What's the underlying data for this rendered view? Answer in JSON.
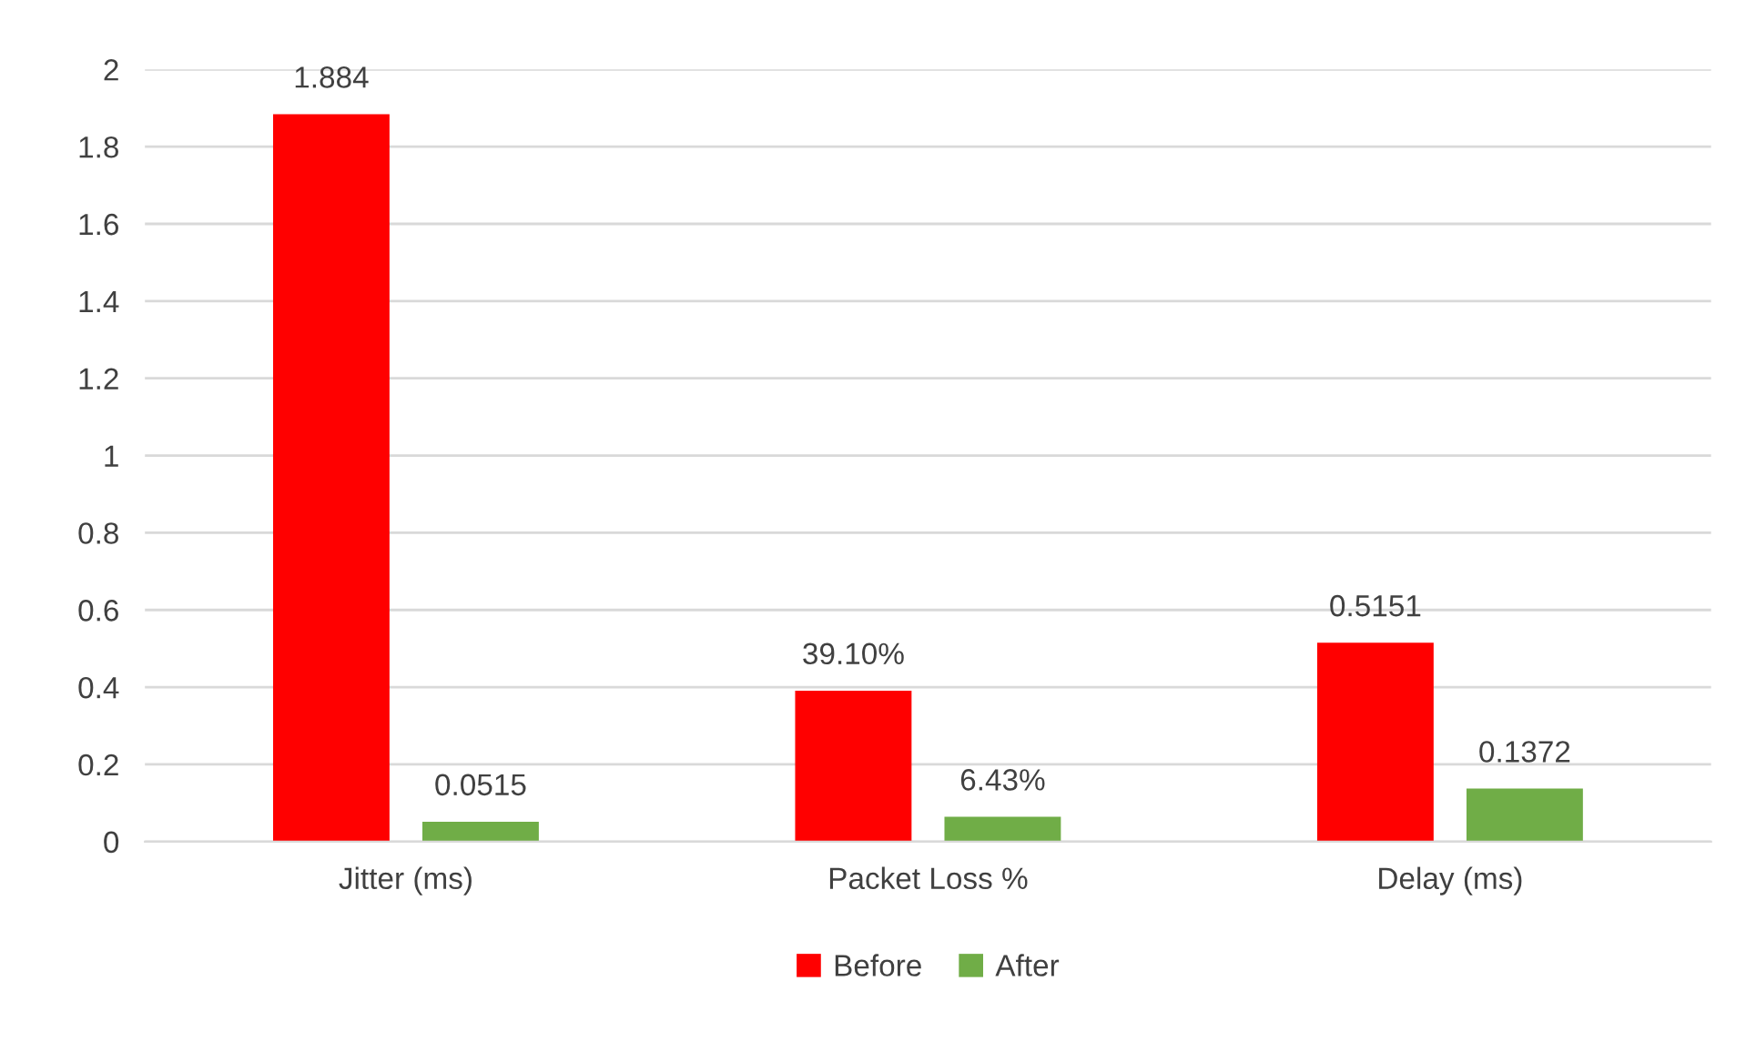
{
  "chart_data": {
    "type": "bar",
    "categories": [
      "Jitter (ms)",
      "Packet Loss %",
      "Delay (ms)"
    ],
    "series": [
      {
        "name": "Before",
        "color": "#ff0000",
        "values": [
          1.884,
          0.391,
          0.5151
        ],
        "value_labels": [
          "1.884",
          "39.10%",
          "0.5151"
        ]
      },
      {
        "name": "After",
        "color": "#70ad47",
        "values": [
          0.0515,
          0.0643,
          0.1372
        ],
        "value_labels": [
          "0.0515",
          "6.43%",
          "0.1372"
        ]
      }
    ],
    "ylim": [
      0,
      2
    ],
    "yticks": [
      0,
      0.2,
      0.4,
      0.6,
      0.8,
      1,
      1.2,
      1.4,
      1.6,
      1.8,
      2
    ],
    "grid": "y",
    "legend": "bottom"
  }
}
